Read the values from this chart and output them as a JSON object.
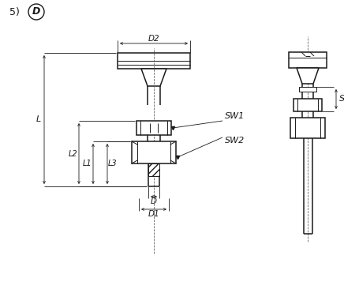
{
  "bg_color": "#ffffff",
  "line_color": "#1a1a1a",
  "figsize": [
    4.36,
    3.71
  ],
  "dpi": 100,
  "title_number": "5)",
  "title_label": "D",
  "dim_labels": [
    "D2",
    "SW1",
    "SW2",
    "L",
    "L2",
    "L1",
    "L3",
    "D",
    "D1",
    "S"
  ]
}
